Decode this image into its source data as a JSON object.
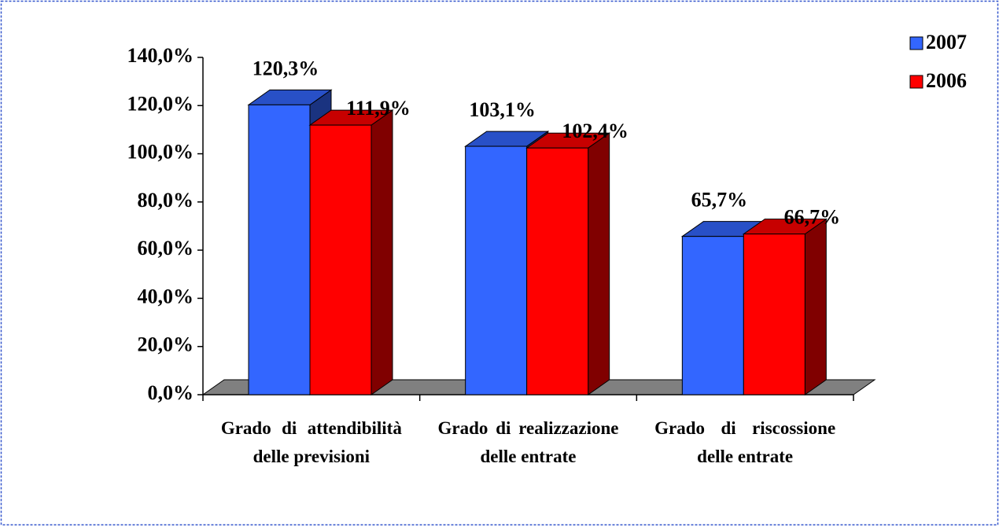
{
  "chart_data": {
    "type": "bar3d",
    "categories": [
      "Grado di attendibilità delle previsioni",
      "Grado di realizzazione delle entrate",
      "Grado di riscossione delle entrate"
    ],
    "series": [
      {
        "name": "2007",
        "color": "#3366ff",
        "values": [
          120.3,
          103.1,
          65.7
        ],
        "value_labels": [
          "120,3%",
          "103,1%",
          "65,7%"
        ]
      },
      {
        "name": "2006",
        "color": "#ff0000",
        "values": [
          111.9,
          102.4,
          66.7
        ],
        "value_labels": [
          "111,9%",
          "102,4%",
          "66,7%"
        ]
      }
    ],
    "ylim": [
      0,
      140
    ],
    "yticks": [
      {
        "value": 0,
        "label": "0,0%"
      },
      {
        "value": 20,
        "label": "20,0%"
      },
      {
        "value": 40,
        "label": "40,0%"
      },
      {
        "value": 60,
        "label": "60,0%"
      },
      {
        "value": 80,
        "label": "80,0%"
      },
      {
        "value": 100,
        "label": "100,0%"
      },
      {
        "value": 120,
        "label": "120,0%"
      },
      {
        "value": 140,
        "label": "140,0%"
      }
    ],
    "legend": "top-right"
  }
}
